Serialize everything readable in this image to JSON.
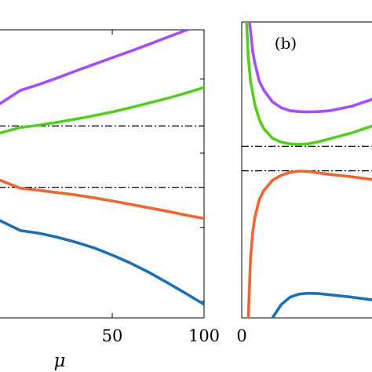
{
  "chart_data": [
    {
      "panel_label": "",
      "type": "line",
      "xlabel": "μ",
      "ylabel": "",
      "xlim": [
        -12,
        100
      ],
      "ylim": [
        0,
        1
      ],
      "xticks": [
        {
          "value": 50,
          "label": "50"
        },
        {
          "value": 100,
          "label": "100"
        }
      ],
      "yticks": [
        0.057,
        0.314,
        0.572,
        0.829
      ],
      "hlines": [
        {
          "y": 0.666,
          "style": "dashdot",
          "color": "#000000"
        },
        {
          "y": 0.453,
          "style": "dashdot",
          "color": "#000000"
        }
      ],
      "series": [
        {
          "color": "#A64DFF",
          "x": [
            -12,
            0,
            10,
            20,
            30,
            40,
            50,
            60,
            70,
            80,
            90,
            100
          ],
          "y": [
            0.74,
            0.79,
            0.81,
            0.833,
            0.857,
            0.88,
            0.903,
            0.926,
            0.95,
            0.974,
            0.998,
            1.022
          ]
        },
        {
          "color": "#55CC22",
          "x": [
            -12,
            0,
            10,
            20,
            30,
            40,
            50,
            60,
            70,
            80,
            90,
            100
          ],
          "y": [
            0.64,
            0.661,
            0.669,
            0.679,
            0.69,
            0.702,
            0.715,
            0.73,
            0.746,
            0.762,
            0.78,
            0.8
          ]
        },
        {
          "color": "#EE6633",
          "x": [
            -12,
            0,
            10,
            20,
            30,
            40,
            50,
            60,
            70,
            80,
            90,
            100
          ],
          "y": [
            0.48,
            0.45,
            0.443,
            0.435,
            0.427,
            0.417,
            0.406,
            0.394,
            0.382,
            0.37,
            0.357,
            0.345
          ]
        },
        {
          "color": "#1F6FB4",
          "x": [
            -12,
            0,
            10,
            20,
            30,
            40,
            50,
            60,
            70,
            80,
            90,
            100
          ],
          "y": [
            0.34,
            0.303,
            0.294,
            0.28,
            0.263,
            0.243,
            0.218,
            0.19,
            0.158,
            0.122,
            0.085,
            0.047
          ]
        }
      ]
    },
    {
      "panel_label": "(b)",
      "type": "line",
      "xlabel": "",
      "ylabel": "",
      "xlim": [
        0,
        60
      ],
      "ylim": [
        0,
        1
      ],
      "xticks": [
        {
          "value": 0,
          "label": "0"
        }
      ],
      "yticks": [],
      "hlines": [
        {
          "y": 0.58,
          "style": "dashdot",
          "color": "#000000"
        },
        {
          "y": 0.497,
          "style": "dashdot",
          "color": "#000000"
        }
      ],
      "series": [
        {
          "color": "#A64DFF",
          "x": [
            3,
            4,
            5,
            6,
            8,
            10,
            14,
            18,
            22,
            26,
            30,
            35,
            40,
            50,
            60
          ],
          "y": [
            1.03,
            0.97,
            0.9,
            0.86,
            0.8,
            0.77,
            0.73,
            0.71,
            0.7,
            0.697,
            0.696,
            0.697,
            0.7,
            0.715,
            0.74
          ]
        },
        {
          "color": "#55CC22",
          "x": [
            2,
            3,
            4,
            5,
            6,
            8,
            10,
            14,
            18,
            22,
            26,
            30,
            35,
            40,
            50,
            60
          ],
          "y": [
            1.03,
            0.88,
            0.8,
            0.76,
            0.72,
            0.67,
            0.64,
            0.607,
            0.594,
            0.588,
            0.586,
            0.588,
            0.595,
            0.605,
            0.625,
            0.65
          ]
        },
        {
          "color": "#EE6633",
          "x": [
            3,
            4,
            5,
            6,
            8,
            10,
            14,
            18,
            22,
            26,
            30,
            35,
            40,
            50,
            60
          ],
          "y": [
            0.0,
            0.2,
            0.29,
            0.34,
            0.4,
            0.43,
            0.465,
            0.482,
            0.492,
            0.496,
            0.495,
            0.49,
            0.485,
            0.477,
            0.467
          ]
        },
        {
          "color": "#1F6FB4",
          "x": [
            14,
            18,
            22,
            26,
            30,
            35,
            40,
            50,
            60
          ],
          "y": [
            0.0,
            0.045,
            0.07,
            0.08,
            0.083,
            0.082,
            0.078,
            0.07,
            0.06
          ]
        }
      ]
    }
  ]
}
